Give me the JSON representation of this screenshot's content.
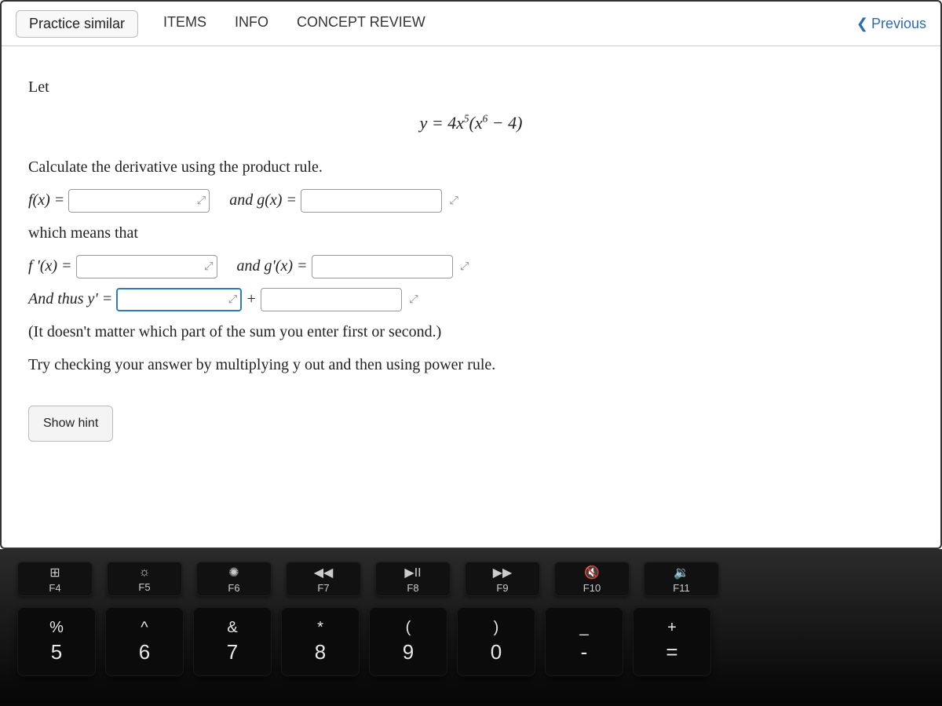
{
  "topbar": {
    "practice_similar": "Practice similar",
    "tab_items": "ITEMS",
    "tab_info": "INFO",
    "tab_concept": "CONCEPT REVIEW",
    "previous": "Previous"
  },
  "problem": {
    "let": "Let",
    "equation_lhs": "y = 4x",
    "equation_exp1": "5",
    "equation_mid": "(x",
    "equation_exp2": "6",
    "equation_rhs": " − 4)",
    "instruction": "Calculate the derivative using the product rule.",
    "fx_label": "f(x) = ",
    "and1": "and  g(x) = ",
    "which": "which means that",
    "fpx_label": "f '(x) = ",
    "and2": "and  g'(x) = ",
    "thus": "And thus y' = ",
    "plus": "  +  ",
    "note": "(It doesn't matter which part of the sum you enter first or second.)",
    "check": "Try checking your answer by multiplying y out and then using power rule.",
    "show_hint": "Show hint"
  },
  "keyboard": {
    "fn": [
      {
        "glyph": "⊞",
        "label": "F4"
      },
      {
        "glyph": "☼",
        "label": "F5"
      },
      {
        "glyph": "✺",
        "label": "F6"
      },
      {
        "glyph": "◀◀",
        "label": "F7"
      },
      {
        "glyph": "▶II",
        "label": "F8"
      },
      {
        "glyph": "▶▶",
        "label": "F9"
      },
      {
        "glyph": "🔇",
        "label": "F10"
      },
      {
        "glyph": "🔉",
        "label": "F11"
      }
    ],
    "num": [
      {
        "upper": "%",
        "lower": "5"
      },
      {
        "upper": "^",
        "lower": "6"
      },
      {
        "upper": "&",
        "lower": "7"
      },
      {
        "upper": "*",
        "lower": "8"
      },
      {
        "upper": "(",
        "lower": "9"
      },
      {
        "upper": ")",
        "lower": "0"
      },
      {
        "upper": "_",
        "lower": "-"
      },
      {
        "upper": "+",
        "lower": "="
      }
    ]
  }
}
